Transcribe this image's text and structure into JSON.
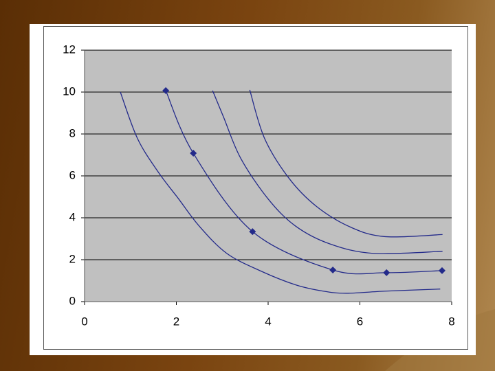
{
  "chart_data": {
    "type": "line",
    "xlim": [
      0,
      8
    ],
    "xticks": [
      0,
      2,
      4,
      6,
      8
    ],
    "ylim": [
      0,
      12
    ],
    "yticks": [
      0,
      2,
      4,
      6,
      8,
      10,
      12
    ],
    "grid": true,
    "series": [
      {
        "color": "#232a8a",
        "markers": false,
        "x": [
          0.78,
          1.15,
          1.6,
          2.05,
          2.5,
          3.1,
          3.85,
          4.6,
          5.2,
          5.7,
          6.55,
          7.75
        ],
        "values": [
          10,
          7.8,
          6.2,
          4.9,
          3.6,
          2.3,
          1.45,
          0.8,
          0.5,
          0.4,
          0.5,
          0.6
        ]
      },
      {
        "color": "#232a8a",
        "markers": true,
        "x": [
          1.77,
          2.37,
          3.66,
          5.41,
          6.58,
          7.79
        ],
        "values": [
          10.07,
          7.08,
          3.34,
          1.51,
          1.38,
          1.48
        ]
      },
      {
        "color": "#232a8a",
        "markers": false,
        "x": [
          2.79,
          3.03,
          3.4,
          4.0,
          4.6,
          5.35,
          6.3,
          7.8
        ],
        "values": [
          10.07,
          8.8,
          6.85,
          4.9,
          3.6,
          2.75,
          2.3,
          2.4
        ]
      },
      {
        "color": "#232a8a",
        "markers": false,
        "x": [
          3.6,
          3.92,
          4.45,
          5.05,
          5.8,
          6.55,
          7.8
        ],
        "values": [
          10.1,
          7.8,
          5.9,
          4.55,
          3.55,
          3.1,
          3.2
        ]
      }
    ]
  }
}
